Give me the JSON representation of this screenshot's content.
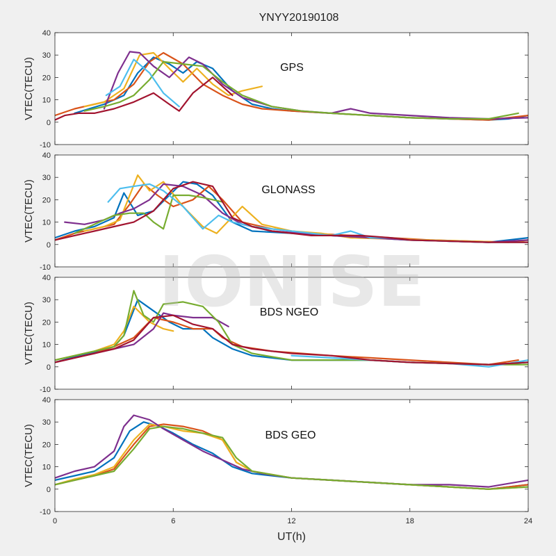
{
  "title": "YNYY20190108",
  "watermark": "IONISE",
  "colors": [
    "#0072BD",
    "#D95319",
    "#EDB120",
    "#7E2F8E",
    "#77AC30",
    "#4DBEEE",
    "#A2142F"
  ],
  "chart_data": [
    {
      "type": "line",
      "panel_label": "GPS",
      "ylabel": "VTEC(TECU)",
      "xlabel": "",
      "xlim": [
        0,
        24
      ],
      "ylim": [
        -10,
        40
      ],
      "xticks": [
        0,
        6,
        12,
        18,
        24
      ],
      "yticks": [
        -10,
        0,
        10,
        20,
        30,
        40
      ],
      "grid": false,
      "series": [
        {
          "x": [
            1.0,
            2.5,
            3.5,
            4.2,
            5.0,
            5.8,
            6.5,
            7.2,
            8.0,
            9.0,
            10.0,
            11.0,
            12.0,
            14.0,
            16.0,
            18.0,
            20.0,
            22.0,
            23.0,
            24.0
          ],
          "y": [
            4,
            8,
            12,
            22,
            29,
            26,
            22,
            27,
            24,
            14,
            8,
            6,
            5,
            4,
            3,
            2,
            1.5,
            1,
            1.5,
            3
          ]
        },
        {
          "x": [
            0.0,
            1.0,
            2.0,
            3.0,
            4.0,
            4.8,
            5.5,
            6.5,
            7.5,
            8.5,
            9.5,
            10.5,
            12.0,
            14.0,
            16.0,
            18.0,
            20.0,
            22.0,
            24.0
          ],
          "y": [
            3,
            6,
            8,
            10,
            17,
            27,
            31,
            26,
            17,
            12,
            8,
            6,
            5,
            4,
            3,
            2,
            1.5,
            1,
            3
          ]
        },
        {
          "x": [
            1.5,
            2.5,
            3.5,
            4.3,
            5.0,
            5.8,
            6.5,
            7.2,
            8.0,
            8.8,
            9.5,
            10.5
          ],
          "y": [
            7,
            9,
            15,
            30,
            31,
            24,
            18,
            24,
            17,
            12,
            14,
            16
          ]
        },
        {
          "x": [
            2.5,
            3.2,
            3.8,
            4.3,
            5.0,
            5.8,
            6.8,
            7.5,
            8.5,
            9.5,
            11.0,
            12.5,
            14.0,
            15.0,
            16.0,
            18.0,
            20.0,
            22.0,
            24.0
          ],
          "y": [
            6,
            22,
            31.5,
            31,
            25,
            20,
            29,
            26,
            17,
            11,
            7,
            5,
            4,
            6,
            4,
            3,
            2,
            1.5,
            2
          ]
        },
        {
          "x": [
            1.5,
            2.5,
            3.3,
            4.0,
            4.8,
            5.5,
            6.5,
            7.5,
            8.5,
            9.5,
            11.0,
            12.5,
            14.0,
            16.0,
            18.0,
            20.0,
            22.0,
            23.5
          ],
          "y": [
            5,
            7,
            9,
            12,
            19,
            27,
            26,
            25,
            18,
            12,
            7,
            5,
            4,
            3,
            2,
            1.5,
            1.5,
            4
          ]
        },
        {
          "x": [
            2.6,
            3.3,
            4.0,
            4.8,
            5.5,
            6.3
          ],
          "y": [
            12,
            16,
            28,
            22,
            13,
            7
          ]
        },
        {
          "x": [
            0.0,
            0.5,
            1.2,
            2.0,
            3.0,
            4.0,
            5.0,
            5.8,
            6.3,
            7.0,
            8.0,
            9.0
          ],
          "y": [
            1,
            3,
            4,
            4,
            6,
            9,
            13,
            8,
            5,
            13,
            20,
            12
          ]
        }
      ]
    },
    {
      "type": "line",
      "panel_label": "GLONASS",
      "ylabel": "VTEC(TECU)",
      "xlabel": "",
      "xlim": [
        0,
        24
      ],
      "ylim": [
        -10,
        40
      ],
      "xticks": [
        0,
        6,
        12,
        18,
        24
      ],
      "yticks": [
        -10,
        0,
        10,
        20,
        30,
        40
      ],
      "grid": false,
      "series": [
        {
          "x": [
            0.0,
            1.0,
            2.0,
            3.0,
            3.5,
            4.2,
            5.0,
            5.8,
            6.5,
            7.2,
            8.0,
            9.0,
            10.0,
            12.0,
            14.0,
            16.0,
            18.0,
            20.0,
            22.0,
            24.0
          ],
          "y": [
            3,
            6,
            8,
            12,
            23,
            13,
            15,
            22,
            28,
            27,
            22,
            10,
            6,
            5,
            4,
            3,
            2,
            1.5,
            1,
            3
          ]
        },
        {
          "x": [
            0.0,
            1.0,
            2.0,
            3.0,
            3.8,
            4.5,
            5.2,
            6.0,
            7.0,
            7.8,
            8.5,
            9.5,
            11.0,
            13.0,
            15.0,
            17.0,
            19.0,
            21.0,
            23.0,
            24.0
          ],
          "y": [
            2,
            5,
            7,
            9,
            18,
            27,
            22,
            17,
            20,
            26,
            20,
            10,
            7,
            5,
            4,
            3,
            2,
            1.5,
            1,
            2
          ]
        },
        {
          "x": [
            1.5,
            2.5,
            3.3,
            4.2,
            4.8,
            5.5,
            6.5,
            7.5,
            8.2,
            9.5,
            10.5,
            12.0,
            13.5,
            15.0,
            17.0,
            19.0,
            21.0,
            23.0,
            24.0
          ],
          "y": [
            6,
            8,
            11,
            31,
            24,
            28,
            17,
            8,
            5,
            17,
            9,
            6,
            5,
            3,
            2.5,
            2,
            1.5,
            1,
            2
          ]
        },
        {
          "x": [
            0.5,
            1.5,
            2.5,
            3.3,
            4.0,
            4.8,
            5.5,
            6.5,
            7.5,
            8.5,
            9.5,
            11.0,
            12.5,
            14.0,
            16.0,
            18.0,
            20.0,
            22.0,
            24.0
          ],
          "y": [
            10,
            9,
            11,
            14,
            16,
            20,
            27,
            26,
            22,
            14,
            9,
            6,
            5,
            4,
            3,
            2,
            1.5,
            1,
            2
          ]
        },
        {
          "x": [
            1.0,
            2.0,
            3.0,
            3.8,
            4.5,
            5.0,
            5.5,
            6.0,
            6.8,
            7.5,
            8.5
          ],
          "y": [
            5,
            9,
            13,
            14,
            14,
            10,
            7,
            22,
            22,
            21,
            19
          ]
        },
        {
          "x": [
            2.7,
            3.3,
            4.0,
            4.8,
            5.5,
            6.5,
            7.5,
            8.3,
            9.0,
            10.0,
            11.0,
            12.0,
            13.0,
            14.0,
            15.0,
            16.0,
            17.0,
            18.0,
            20.0,
            22.0,
            24.0
          ],
          "y": [
            19,
            25,
            26,
            27,
            24,
            17,
            7,
            13,
            10,
            8,
            7,
            6,
            5,
            4,
            6,
            3,
            3,
            2,
            1.5,
            1,
            1
          ]
        },
        {
          "x": [
            0.0,
            1.0,
            2.0,
            3.0,
            4.0,
            5.0,
            6.0,
            7.0,
            8.0,
            9.0,
            10.0,
            11.0,
            12.0,
            13.0,
            14.0,
            15.5,
            17.0,
            18.0,
            20.0,
            22.0,
            24.0
          ],
          "y": [
            2,
            4,
            6,
            8,
            10,
            15,
            25,
            28,
            26,
            12,
            8,
            6,
            5,
            4,
            4,
            4,
            3,
            2,
            1.5,
            1,
            1
          ]
        }
      ]
    },
    {
      "type": "line",
      "panel_label": "BDS NGEO",
      "ylabel": "VTEC(TECU)",
      "xlabel": "",
      "xlim": [
        0,
        24
      ],
      "ylim": [
        -10,
        40
      ],
      "xticks": [
        0,
        6,
        12,
        18,
        24
      ],
      "yticks": [
        -10,
        0,
        10,
        20,
        30,
        40
      ],
      "grid": false,
      "series": [
        {
          "x": [
            0.0,
            1.0,
            2.0,
            3.0,
            3.5,
            4.2,
            5.0,
            5.8,
            6.5,
            7.5,
            8.0,
            9.0,
            10.0,
            12.0,
            14.0,
            16.0,
            18.0,
            20.0,
            22.0,
            24.0
          ],
          "y": [
            2,
            4.5,
            6.5,
            9,
            14,
            30,
            25,
            20,
            17,
            17,
            13,
            8,
            5,
            3,
            3,
            3,
            2,
            1.5,
            1,
            2
          ]
        },
        {
          "x": [
            0.0,
            1.0,
            2.0,
            3.0,
            4.0,
            5.0,
            6.0,
            7.0,
            8.0,
            8.5,
            9.5,
            11.0,
            12.5,
            14.0,
            16.0,
            18.0,
            20.0,
            22.0,
            23.5
          ],
          "y": [
            2,
            4,
            6,
            9,
            13,
            22,
            20,
            17,
            17,
            13,
            9,
            7,
            6,
            5,
            4,
            3,
            2,
            1,
            3
          ]
        },
        {
          "x": [
            0.0,
            1.0,
            2.0,
            3.0,
            3.5,
            4.0,
            4.8,
            5.5,
            6.0
          ],
          "y": [
            3,
            5,
            7,
            10,
            16,
            27,
            20,
            17,
            16
          ]
        },
        {
          "x": [
            0.0,
            1.0,
            2.0,
            3.0,
            4.0,
            5.0,
            5.5,
            6.0,
            7.0,
            8.0,
            8.8
          ],
          "y": [
            2,
            4,
            6,
            8,
            10,
            17,
            24,
            23,
            22,
            22,
            18
          ]
        },
        {
          "x": [
            0.0,
            1.0,
            2.0,
            3.0,
            3.5,
            4.0,
            4.5,
            5.0,
            5.5,
            6.5,
            7.5,
            8.3,
            9.0,
            10.0,
            12.0,
            14.0,
            16.0,
            18.0,
            20.0,
            22.0,
            24.0
          ],
          "y": [
            3,
            5,
            7,
            9,
            14,
            34,
            23,
            20,
            28,
            29,
            27,
            20,
            10,
            6,
            3,
            3,
            3,
            2,
            1.5,
            1,
            1
          ]
        },
        {
          "x": [
            12.0,
            14.0,
            16.0,
            18.0,
            20.0,
            22.0,
            24.0
          ],
          "y": [
            5,
            4,
            3,
            2,
            1.5,
            0,
            3
          ]
        },
        {
          "x": [
            0.0,
            1.0,
            2.0,
            3.0,
            4.0,
            5.0,
            6.0,
            7.0,
            8.0,
            9.0,
            10.0,
            12.0,
            14.0,
            16.0,
            18.0,
            20.0,
            22.0,
            24.0
          ],
          "y": [
            2,
            4,
            6,
            8,
            12,
            22,
            23,
            19,
            17,
            10,
            8,
            6,
            5,
            3,
            2,
            1.5,
            1,
            2
          ]
        }
      ]
    },
    {
      "type": "line",
      "panel_label": "BDS GEO",
      "ylabel": "VTEC(TECU)",
      "xlabel": "UT(h)",
      "xlim": [
        0,
        24
      ],
      "ylim": [
        -10,
        40
      ],
      "xticks": [
        0,
        6,
        12,
        18,
        24
      ],
      "yticks": [
        -10,
        0,
        10,
        20,
        30,
        40
      ],
      "grid": false,
      "series": [
        {
          "x": [
            0.0,
            1.0,
            2.0,
            3.0,
            3.8,
            4.5,
            5.3,
            6.0,
            7.0,
            8.0,
            9.0,
            10.0,
            12.0,
            14.0,
            16.0,
            18.0,
            20.0,
            22.0,
            24.0
          ],
          "y": [
            4,
            6,
            8,
            14,
            26,
            30,
            28,
            25,
            20,
            16,
            10,
            7,
            5,
            4,
            3,
            2,
            1,
            0,
            2
          ]
        },
        {
          "x": [
            0.0,
            1.0,
            2.0,
            3.0,
            4.0,
            4.8,
            5.5,
            6.5,
            7.5,
            8.5,
            9.2,
            10.0,
            12.0,
            14.0,
            16.0,
            18.0,
            20.0,
            22.0,
            24.0
          ],
          "y": [
            2,
            4,
            6,
            9,
            20,
            28,
            29,
            28,
            26,
            22,
            12,
            8,
            5,
            4,
            3,
            2,
            1,
            0,
            2
          ]
        },
        {
          "x": [
            0.0,
            1.0,
            2.0,
            3.0,
            4.0,
            4.8,
            5.5,
            6.5,
            7.5,
            8.5,
            9.2,
            10.0,
            12.0,
            14.0,
            16.0,
            18.0,
            20.0,
            22.0,
            24.0
          ],
          "y": [
            2,
            4.5,
            6.5,
            10,
            22,
            29,
            28,
            26,
            25,
            22,
            12,
            8,
            5,
            4,
            3,
            2,
            1,
            0,
            1
          ]
        },
        {
          "x": [
            0.0,
            1.0,
            2.0,
            3.0,
            3.5,
            4.0,
            4.8,
            5.5,
            6.5,
            7.5,
            8.5,
            9.5,
            10.5,
            12.0,
            14.0,
            16.0,
            18.0,
            20.0,
            22.0,
            24.0
          ],
          "y": [
            5,
            8,
            10,
            17,
            28,
            33,
            31,
            27,
            22,
            17,
            13,
            9,
            7,
            5,
            4,
            3,
            2,
            2,
            1,
            4
          ]
        },
        {
          "x": [
            0.0,
            1.0,
            2.0,
            3.0,
            4.0,
            4.8,
            5.5,
            6.5,
            7.5,
            8.5,
            9.2,
            10.0,
            12.0,
            14.0,
            16.0,
            18.0,
            20.0,
            22.0,
            24.0
          ],
          "y": [
            2,
            4,
            6,
            8,
            18,
            27,
            28,
            27,
            25,
            23,
            14,
            8,
            5,
            4,
            3,
            2,
            1,
            0,
            1
          ]
        }
      ]
    }
  ]
}
